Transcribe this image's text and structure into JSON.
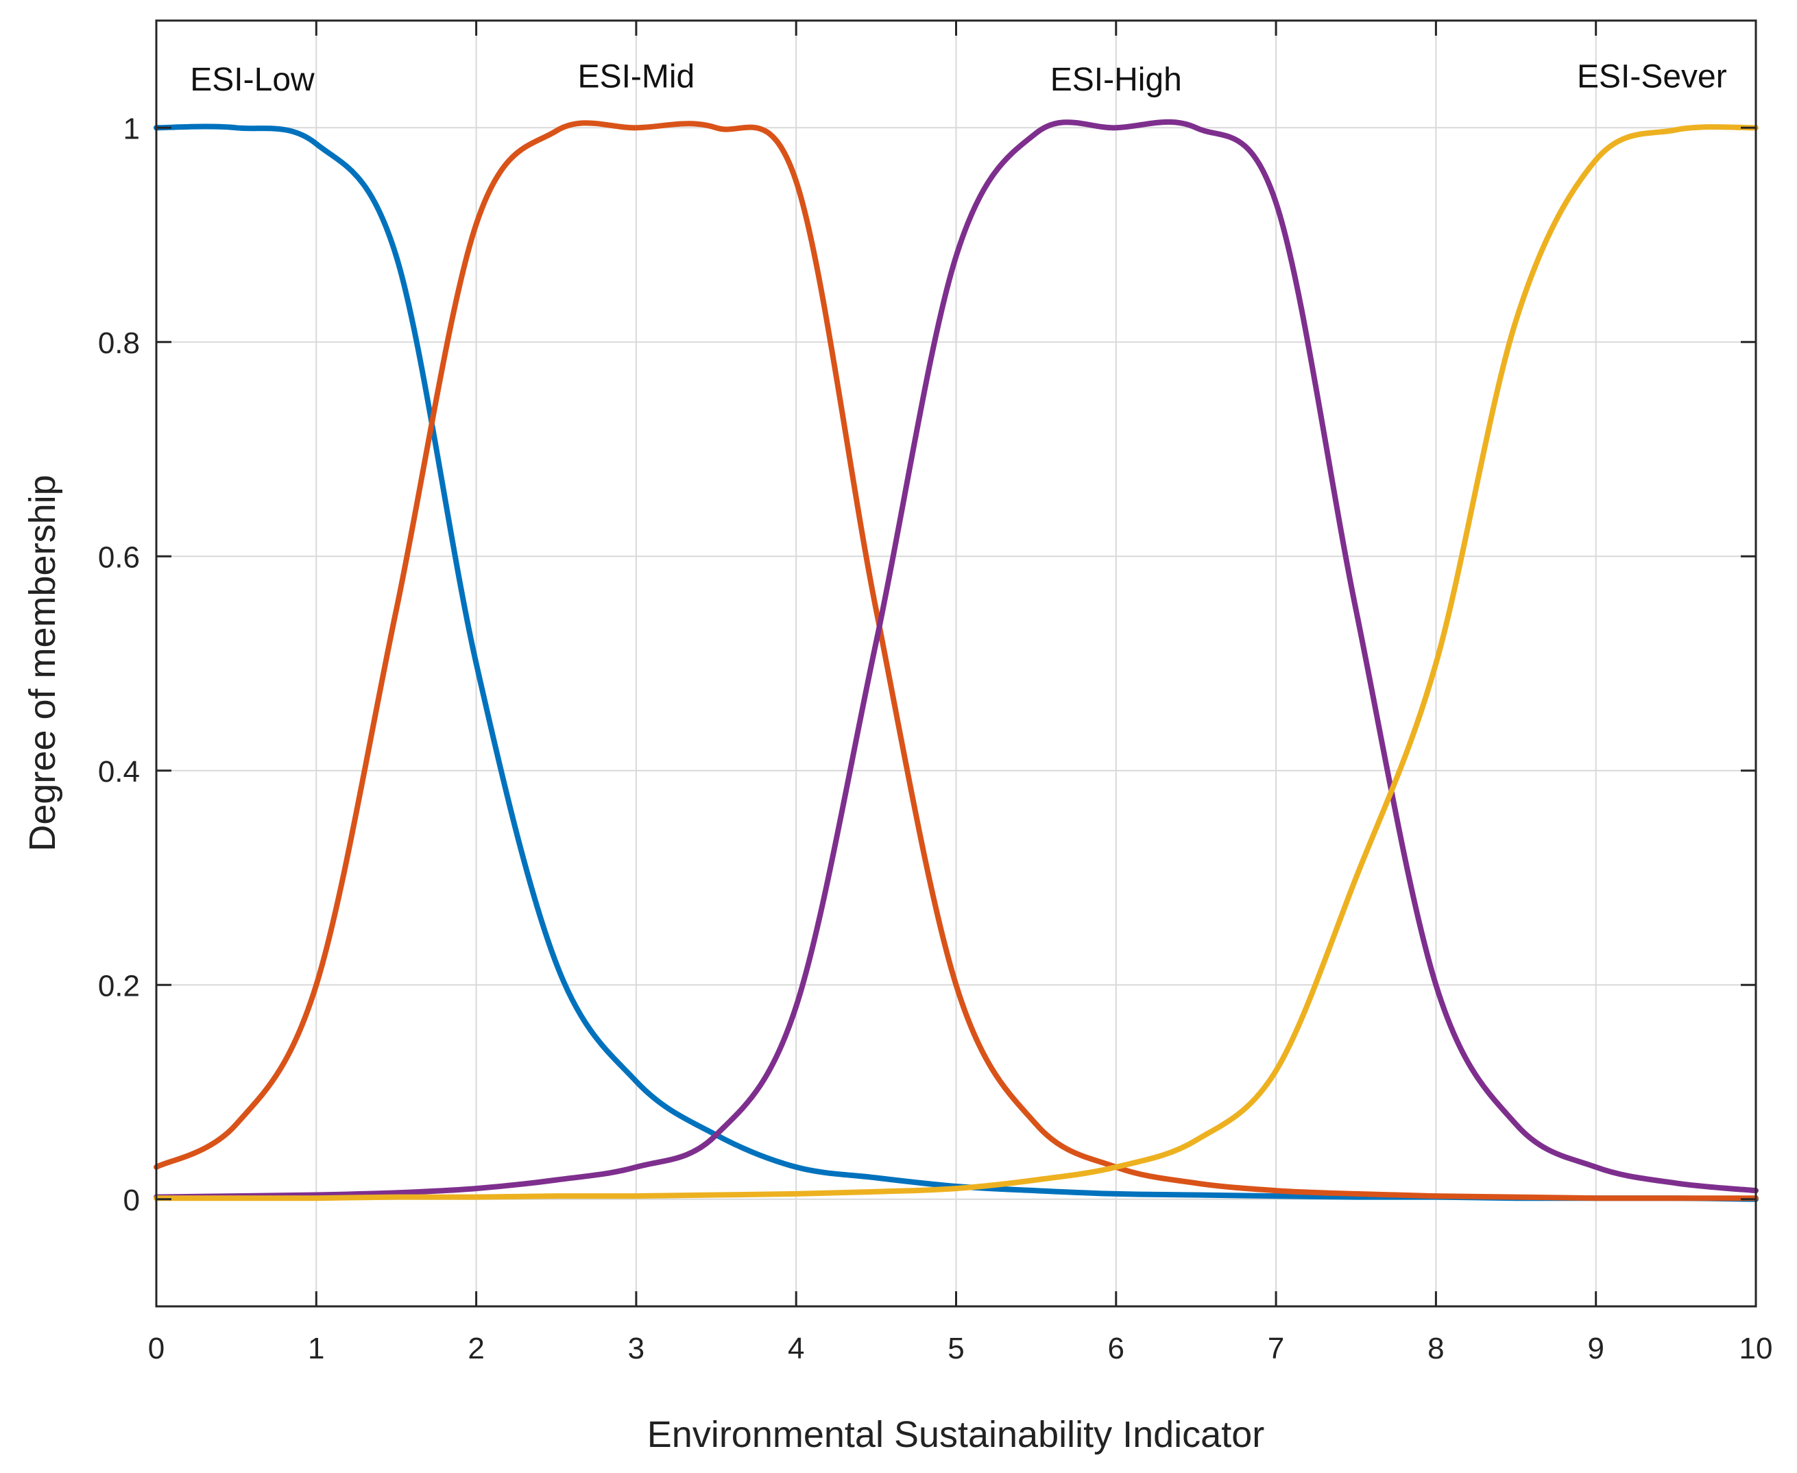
{
  "chart_data": {
    "type": "line",
    "title": "",
    "xlabel": "Environmental Sustainability Indicator",
    "ylabel": "Degree of membership",
    "xlim": [
      0,
      10
    ],
    "ylim": [
      -0.1,
      1.1
    ],
    "grid": true,
    "x_ticks": [
      "0",
      "1",
      "2",
      "3",
      "4",
      "5",
      "6",
      "7",
      "8",
      "9",
      "10"
    ],
    "y_ticks": [
      "0",
      "0.2",
      "0.4",
      "0.6",
      "0.8",
      "1"
    ],
    "x": [
      0,
      0.5,
      1,
      1.5,
      2,
      2.5,
      3,
      3.5,
      4,
      4.5,
      5,
      5.5,
      6,
      6.5,
      7,
      7.5,
      8,
      8.5,
      9,
      9.5,
      10
    ],
    "series": [
      {
        "name": "ESI-Low",
        "color": "#0072BD",
        "label_pos": [
          0.6,
          1.045
        ],
        "values": [
          1.0,
          1.0,
          0.985,
          0.88,
          0.5,
          0.22,
          0.11,
          0.06,
          0.03,
          0.02,
          0.012,
          0.008,
          0.005,
          0.004,
          0.003,
          0.002,
          0.002,
          0.001,
          0.001,
          0.001,
          0.0
        ]
      },
      {
        "name": "ESI-Mid",
        "color": "#D95319",
        "label_pos": [
          3.0,
          1.048
        ],
        "values": [
          0.03,
          0.07,
          0.2,
          0.55,
          0.91,
          0.997,
          1.0,
          1.0,
          0.95,
          0.55,
          0.2,
          0.07,
          0.03,
          0.015,
          0.008,
          0.005,
          0.003,
          0.002,
          0.001,
          0.001,
          0.001
        ]
      },
      {
        "name": "ESI-High",
        "color": "#7E2F8E",
        "label_pos": [
          6.0,
          1.045
        ],
        "values": [
          0.002,
          0.003,
          0.004,
          0.006,
          0.01,
          0.018,
          0.03,
          0.06,
          0.18,
          0.52,
          0.88,
          0.995,
          1.0,
          1.0,
          0.93,
          0.55,
          0.2,
          0.07,
          0.03,
          0.015,
          0.008
        ]
      },
      {
        "name": "ESI-Sever",
        "color": "#EDB120",
        "label_pos": [
          9.35,
          1.048
        ],
        "values": [
          0.001,
          0.001,
          0.001,
          0.002,
          0.002,
          0.003,
          0.003,
          0.004,
          0.005,
          0.007,
          0.01,
          0.018,
          0.03,
          0.055,
          0.12,
          0.3,
          0.5,
          0.82,
          0.97,
          0.998,
          1.0
        ]
      }
    ]
  }
}
